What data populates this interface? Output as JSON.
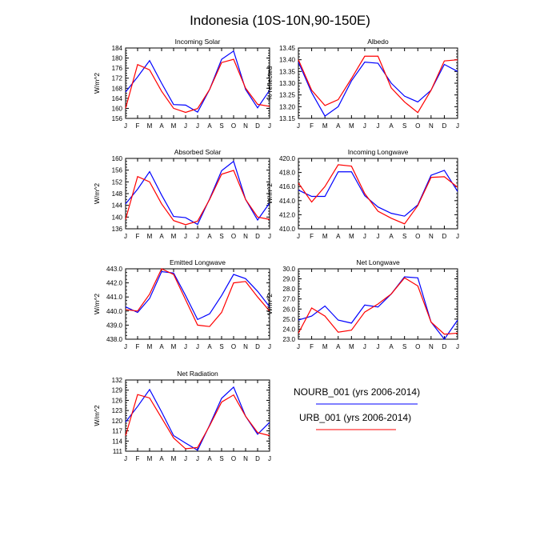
{
  "title": "Indonesia (10S-10N,90-150E)",
  "months": [
    "J",
    "F",
    "M",
    "A",
    "M",
    "J",
    "J",
    "A",
    "S",
    "O",
    "N",
    "D",
    "J"
  ],
  "colors": {
    "nourb": "#0000ff",
    "urb": "#ff0000"
  },
  "legend": {
    "nourb_label": "NOURB_001 (yrs 2006-2014)",
    "urb_label": "URB_001 (yrs 2006-2014)"
  },
  "chart_data": [
    {
      "type": "line",
      "title": "Incoming Solar",
      "ylabel": "W/m^2",
      "ylim": [
        156,
        184
      ],
      "yticks": [
        "156",
        "160",
        "164",
        "168",
        "172",
        "176",
        "180",
        "184"
      ],
      "categories": [
        "J",
        "F",
        "M",
        "A",
        "M",
        "J",
        "J",
        "A",
        "S",
        "O",
        "N",
        "D",
        "J"
      ],
      "series": [
        {
          "name": "NOURB_001 (yrs 2006-2014)",
          "values": [
            166.5,
            172.5,
            179.0,
            170.0,
            161.5,
            161.3,
            158.5,
            167.5,
            179.5,
            182.8,
            167.5,
            160.2,
            167.2
          ]
        },
        {
          "name": "URB_001 (yrs 2006-2014)",
          "values": [
            160.0,
            177.4,
            175.3,
            166.8,
            160.0,
            158.4,
            159.9,
            167.5,
            178.2,
            179.5,
            168.0,
            161.6,
            160.8
          ]
        }
      ]
    },
    {
      "type": "line",
      "title": "Albedo",
      "ylabel": "% reflected",
      "ylim": [
        13.15,
        13.45
      ],
      "yticks": [
        "13.15",
        "13.20",
        "13.25",
        "13.30",
        "13.35",
        "13.40",
        "13.45"
      ],
      "categories": [
        "J",
        "F",
        "M",
        "A",
        "M",
        "J",
        "J",
        "A",
        "S",
        "O",
        "N",
        "D",
        "J"
      ],
      "series": [
        {
          "name": "NOURB_001 (yrs 2006-2014)",
          "values": [
            13.39,
            13.26,
            13.16,
            13.2,
            13.31,
            13.39,
            13.385,
            13.3,
            13.245,
            13.22,
            13.27,
            13.38,
            13.35
          ]
        },
        {
          "name": "URB_001 (yrs 2006-2014)",
          "values": [
            13.4,
            13.27,
            13.205,
            13.23,
            13.32,
            13.415,
            13.415,
            13.28,
            13.22,
            13.175,
            13.27,
            13.395,
            13.4
          ]
        }
      ]
    },
    {
      "type": "line",
      "title": "Absorbed Solar",
      "ylabel": "W/m^2",
      "ylim": [
        136,
        160
      ],
      "yticks": [
        "136",
        "140",
        "144",
        "148",
        "152",
        "156",
        "160"
      ],
      "categories": [
        "J",
        "F",
        "M",
        "A",
        "M",
        "J",
        "J",
        "A",
        "S",
        "O",
        "N",
        "D",
        "J"
      ],
      "series": [
        {
          "name": "NOURB_001 (yrs 2006-2014)",
          "values": [
            144.5,
            149.5,
            155.5,
            147.5,
            140.2,
            139.8,
            137.5,
            146.2,
            155.8,
            159.0,
            146.0,
            139.0,
            144.8
          ]
        },
        {
          "name": "URB_001 (yrs 2006-2014)",
          "values": [
            139.2,
            153.8,
            152.0,
            144.5,
            138.8,
            137.4,
            138.6,
            146.0,
            154.6,
            155.9,
            146.0,
            140.0,
            139.2
          ]
        }
      ]
    },
    {
      "type": "line",
      "title": "Incoming Longwave",
      "ylabel": "W/m^2",
      "ylim": [
        410,
        420
      ],
      "yticks": [
        "410.0",
        "412.0",
        "414.0",
        "416.0",
        "418.0",
        "420.0"
      ],
      "categories": [
        "J",
        "F",
        "M",
        "A",
        "M",
        "J",
        "J",
        "A",
        "S",
        "O",
        "N",
        "D",
        "J"
      ],
      "series": [
        {
          "name": "NOURB_001 (yrs 2006-2014)",
          "values": [
            415.5,
            414.6,
            414.6,
            418.1,
            418.1,
            414.7,
            413.1,
            412.2,
            411.8,
            413.4,
            417.6,
            418.3,
            415.3
          ]
        },
        {
          "name": "URB_001 (yrs 2006-2014)",
          "values": [
            416.5,
            413.8,
            416.0,
            419.1,
            418.9,
            415.0,
            412.5,
            411.5,
            410.7,
            413.3,
            417.3,
            417.4,
            415.9
          ]
        }
      ]
    },
    {
      "type": "line",
      "title": "Emitted Longwave",
      "ylabel": "W/m^2",
      "ylim": [
        438,
        443
      ],
      "yticks": [
        "438.0",
        "439.0",
        "440.0",
        "441.0",
        "442.0",
        "443.0"
      ],
      "categories": [
        "J",
        "F",
        "M",
        "A",
        "M",
        "J",
        "J",
        "A",
        "S",
        "O",
        "N",
        "D",
        "J"
      ],
      "series": [
        {
          "name": "NOURB_001 (yrs 2006-2014)",
          "values": [
            440.3,
            439.9,
            440.9,
            442.8,
            442.7,
            441.1,
            439.4,
            439.8,
            441.1,
            442.6,
            442.3,
            441.4,
            440.3
          ]
        },
        {
          "name": "URB_001 (yrs 2006-2014)",
          "values": [
            440.1,
            440.0,
            441.2,
            443.0,
            442.6,
            440.8,
            439.0,
            438.9,
            439.9,
            442.0,
            442.1,
            441.0,
            440.0
          ]
        }
      ]
    },
    {
      "type": "line",
      "title": "Net Longwave",
      "ylabel": "W/m^2",
      "ylim": [
        23,
        30
      ],
      "yticks": [
        "23.0",
        "24.0",
        "25.0",
        "26.0",
        "27.0",
        "28.0",
        "29.0",
        "30.0"
      ],
      "categories": [
        "J",
        "F",
        "M",
        "A",
        "M",
        "J",
        "J",
        "A",
        "S",
        "O",
        "N",
        "D",
        "J"
      ],
      "series": [
        {
          "name": "NOURB_001 (yrs 2006-2014)",
          "values": [
            24.9,
            25.3,
            26.3,
            24.9,
            24.6,
            26.4,
            26.2,
            27.5,
            29.2,
            29.1,
            24.7,
            23.0,
            24.9
          ]
        },
        {
          "name": "URB_001 (yrs 2006-2014)",
          "values": [
            23.6,
            26.1,
            25.3,
            23.7,
            23.9,
            25.7,
            26.5,
            27.5,
            29.1,
            28.3,
            24.7,
            23.5,
            23.6
          ]
        }
      ]
    },
    {
      "type": "line",
      "title": "Net Radiation",
      "ylabel": "W/m^2",
      "ylim": [
        111,
        132
      ],
      "yticks": [
        "111",
        "114",
        "117",
        "120",
        "123",
        "126",
        "129",
        "132"
      ],
      "categories": [
        "J",
        "F",
        "M",
        "A",
        "M",
        "J",
        "J",
        "A",
        "S",
        "O",
        "N",
        "D",
        "J"
      ],
      "series": [
        {
          "name": "NOURB_001 (yrs 2006-2014)",
          "values": [
            119.6,
            124.2,
            129.2,
            122.6,
            115.6,
            113.4,
            111.3,
            118.7,
            126.6,
            129.9,
            121.3,
            116.0,
            119.5
          ]
        },
        {
          "name": "URB_001 (yrs 2006-2014)",
          "values": [
            115.6,
            127.7,
            126.7,
            120.8,
            114.9,
            111.7,
            112.1,
            118.5,
            125.5,
            127.6,
            121.3,
            116.5,
            115.6
          ]
        }
      ]
    }
  ]
}
